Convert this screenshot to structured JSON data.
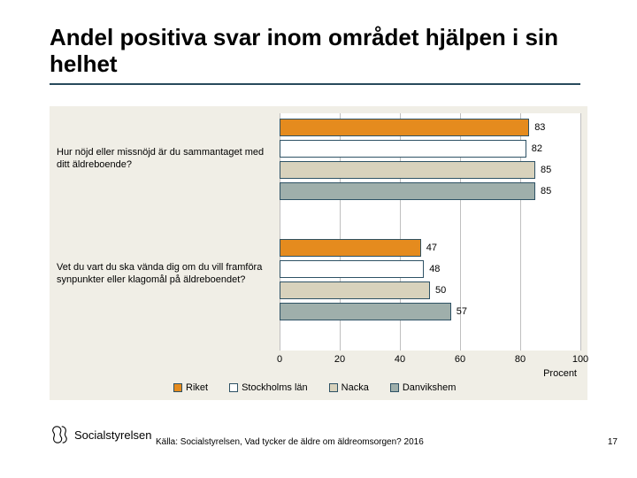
{
  "title": "Andel positiva svar inom området hjälpen i sin helhet",
  "chart": {
    "type": "bar",
    "orientation": "horizontal",
    "background_color": "#f0eee6",
    "plot_background": "#ffffff",
    "font_family": "Arial",
    "label_fontsize": 11,
    "xlim": [
      0,
      100
    ],
    "xtick_step": 20,
    "xticks": [
      0,
      20,
      40,
      60,
      80,
      100
    ],
    "x_title": "Procent",
    "bar_border_color": "#2e5265",
    "grid_color": "#bfbfbf",
    "categories": [
      {
        "label": "Hur nöjd eller missnöjd är du sammantaget med ditt äldreboende?",
        "bars": [
          83,
          82,
          85,
          85
        ]
      },
      {
        "label": "Vet du vart du ska vända dig om du vill framföra synpunkter eller klagomål på äldreboendet?",
        "bars": [
          47,
          48,
          50,
          57
        ]
      }
    ],
    "series": [
      {
        "name": "Riket",
        "color": "#e58b1e"
      },
      {
        "name": "Stockholms län",
        "color": "#ffffff"
      },
      {
        "name": "Nacka",
        "color": "#d8d2bc"
      },
      {
        "name": "Danvikshem",
        "color": "#9fafab"
      }
    ]
  },
  "footer": {
    "source": "Källa: Socialstyrelsen, Vad tycker de äldre om äldreomsorgen? 2016",
    "logo_text": "Socialstyrelsen",
    "page_number": "17"
  }
}
